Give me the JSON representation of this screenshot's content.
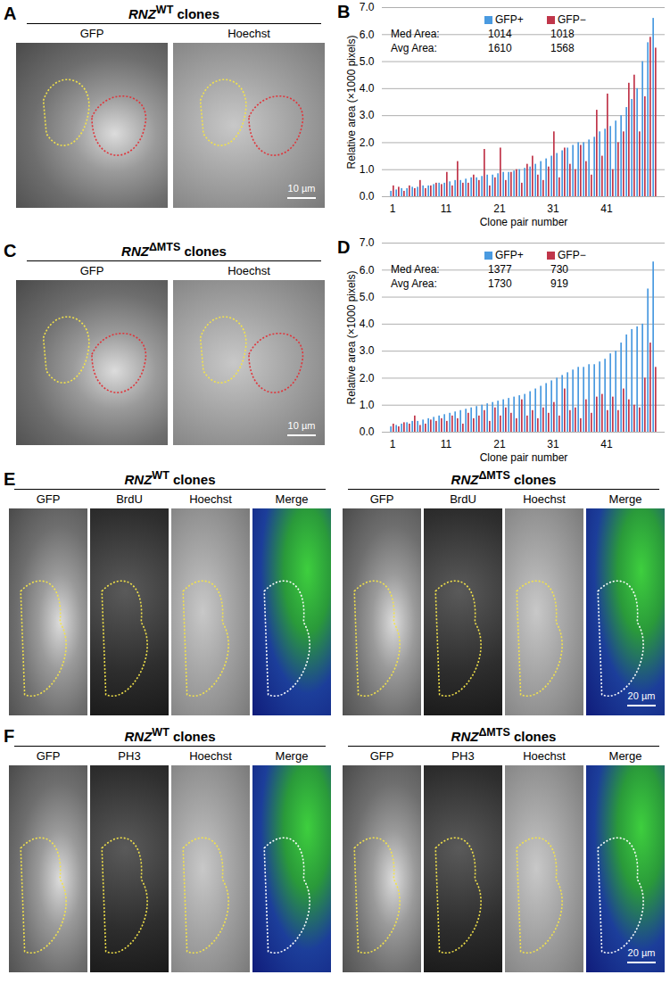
{
  "figure": {
    "A": {
      "letter": "A",
      "title": {
        "gene": "RNZ",
        "allele": "WT",
        "suffix": "clones"
      },
      "channels": [
        "GFP",
        "Hoechst"
      ],
      "scale_bar": "10 µm"
    },
    "C": {
      "letter": "C",
      "title": {
        "gene": "RNZ",
        "allele": "ΔMTS",
        "suffix": "clones"
      },
      "channels": [
        "GFP",
        "Hoechst"
      ],
      "scale_bar": "10 µm"
    },
    "E": {
      "letter": "E",
      "groups": [
        {
          "title": {
            "gene": "RNZ",
            "allele": "WT",
            "suffix": "clones"
          },
          "channels": [
            "GFP",
            "BrdU",
            "Hoechst",
            "Merge"
          ]
        },
        {
          "title": {
            "gene": "RNZ",
            "allele": "ΔMTS",
            "suffix": "clones"
          },
          "channels": [
            "GFP",
            "BrdU",
            "Hoechst",
            "Merge"
          ]
        }
      ],
      "scale_bar": "20 µm"
    },
    "F": {
      "letter": "F",
      "groups": [
        {
          "title": {
            "gene": "RNZ",
            "allele": "WT",
            "suffix": "clones"
          },
          "channels": [
            "GFP",
            "PH3",
            "Hoechst",
            "Merge"
          ]
        },
        {
          "title": {
            "gene": "RNZ",
            "allele": "ΔMTS",
            "suffix": "clones"
          },
          "channels": [
            "GFP",
            "PH3",
            "Hoechst",
            "Merge"
          ]
        }
      ],
      "scale_bar": "20 µm"
    }
  },
  "chart_data": [
    {
      "type": "bar",
      "title": "B",
      "x_label": "Clone pair number",
      "y_label": "Relative area (×1000 pixels)",
      "x": [
        1,
        2,
        3,
        4,
        5,
        6,
        7,
        8,
        9,
        10,
        11,
        12,
        13,
        14,
        15,
        16,
        17,
        18,
        19,
        20,
        21,
        22,
        23,
        24,
        25,
        26,
        27,
        28,
        29,
        30,
        31,
        32,
        33,
        34,
        35,
        36,
        37,
        38,
        39,
        40,
        41,
        42,
        43,
        44,
        45,
        46,
        47,
        48,
        49,
        50
      ],
      "xticks": [
        1,
        11,
        21,
        31,
        41
      ],
      "ylim": [
        0,
        7
      ],
      "yticks": [
        0,
        1,
        2,
        3,
        4,
        5,
        6,
        7
      ],
      "grid": true,
      "legend": "top",
      "series": [
        {
          "name": "GFP+",
          "color": "#4a9ae0",
          "values": [
            0.2,
            0.25,
            0.3,
            0.3,
            0.35,
            0.35,
            0.4,
            0.4,
            0.45,
            0.5,
            0.5,
            0.55,
            0.6,
            0.6,
            0.65,
            0.7,
            0.7,
            0.75,
            0.8,
            0.8,
            0.85,
            0.9,
            0.9,
            0.95,
            1.0,
            1.05,
            1.1,
            1.2,
            1.3,
            1.4,
            1.5,
            1.6,
            1.7,
            1.8,
            1.9,
            2.0,
            2.0,
            2.1,
            2.2,
            2.4,
            2.5,
            2.6,
            2.8,
            3.0,
            3.3,
            3.6,
            4.0,
            5.0,
            5.7,
            6.6
          ],
          "annotations": [
            1014,
            1610
          ]
        },
        {
          "name": "GFP−",
          "color": "#c0364a",
          "values": [
            0.4,
            0.35,
            0.2,
            0.4,
            0.3,
            0.6,
            0.3,
            0.4,
            0.5,
            0.45,
            0.9,
            0.4,
            1.3,
            0.5,
            0.5,
            0.8,
            0.6,
            1.75,
            0.4,
            0.7,
            1.8,
            0.6,
            0.9,
            1.0,
            0.5,
            1.2,
            1.5,
            0.8,
            0.6,
            1.1,
            2.4,
            0.7,
            1.8,
            1.2,
            1.0,
            1.9,
            1.3,
            0.8,
            3.2,
            1.5,
            3.8,
            1.0,
            2.0,
            2.4,
            4.2,
            4.5,
            2.4,
            3.7,
            5.9,
            5.5
          ],
          "annotations": [
            1018,
            1568
          ]
        }
      ],
      "annotation_labels": [
        "Med Area:",
        "Avg Area:"
      ]
    },
    {
      "type": "bar",
      "title": "D",
      "x_label": "Clone pair number",
      "y_label": "Relative area (×1000 pixels)",
      "x": [
        1,
        2,
        3,
        4,
        5,
        6,
        7,
        8,
        9,
        10,
        11,
        12,
        13,
        14,
        15,
        16,
        17,
        18,
        19,
        20,
        21,
        22,
        23,
        24,
        25,
        26,
        27,
        28,
        29,
        30,
        31,
        32,
        33,
        34,
        35,
        36,
        37,
        38,
        39,
        40,
        41,
        42,
        43,
        44,
        45,
        46,
        47,
        48,
        49,
        50
      ],
      "xticks": [
        1,
        11,
        21,
        31,
        41
      ],
      "ylim": [
        0,
        7
      ],
      "yticks": [
        0,
        1,
        2,
        3,
        4,
        5,
        6,
        7
      ],
      "grid": true,
      "legend": "top",
      "series": [
        {
          "name": "GFP+",
          "color": "#4a9ae0",
          "values": [
            0.2,
            0.25,
            0.3,
            0.35,
            0.4,
            0.4,
            0.45,
            0.5,
            0.55,
            0.6,
            0.65,
            0.7,
            0.75,
            0.8,
            0.85,
            0.9,
            0.95,
            1.0,
            1.05,
            1.1,
            1.15,
            1.2,
            1.25,
            1.3,
            1.35,
            1.4,
            1.5,
            1.6,
            1.7,
            1.8,
            1.9,
            2.0,
            2.1,
            2.2,
            2.3,
            2.4,
            2.4,
            2.5,
            2.5,
            2.6,
            2.7,
            2.9,
            3.0,
            3.3,
            3.6,
            3.8,
            3.9,
            4.0,
            5.3,
            6.3
          ],
          "annotations": [
            1377,
            1730
          ]
        },
        {
          "name": "GFP−",
          "color": "#c0364a",
          "values": [
            0.3,
            0.2,
            0.35,
            0.3,
            0.6,
            0.25,
            0.3,
            0.45,
            0.4,
            0.5,
            0.4,
            0.6,
            0.5,
            0.3,
            0.7,
            0.5,
            0.6,
            0.8,
            0.4,
            0.9,
            0.6,
            0.9,
            0.7,
            0.5,
            1.2,
            0.6,
            0.8,
            0.5,
            0.9,
            0.7,
            1.1,
            0.6,
            1.6,
            0.8,
            0.9,
            0.5,
            1.2,
            0.7,
            1.3,
            1.4,
            0.8,
            1.3,
            0.8,
            1.6,
            1.2,
            1.0,
            0.9,
            2.0,
            3.3,
            2.4
          ],
          "annotations": [
            730,
            919
          ]
        }
      ],
      "annotation_labels": [
        "Med Area:",
        "Avg Area:"
      ]
    }
  ]
}
